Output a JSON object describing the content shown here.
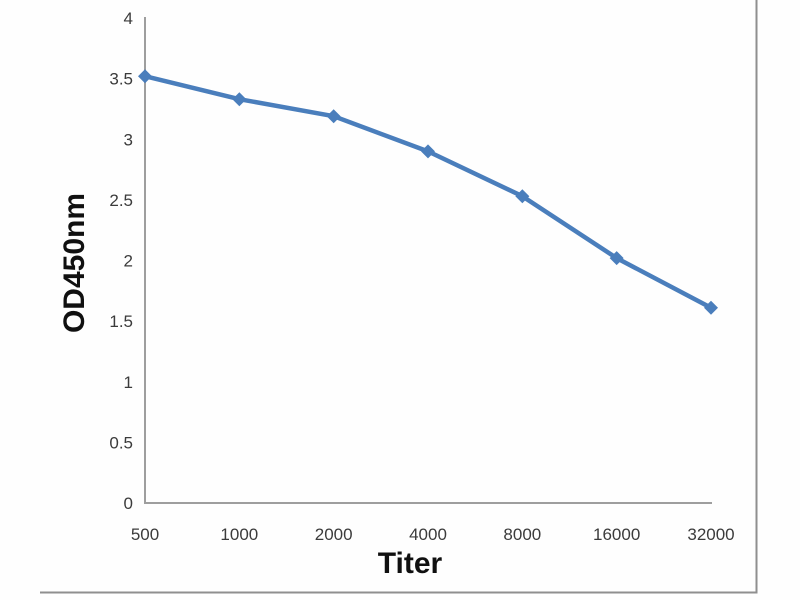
{
  "figure": {
    "description": "ELISA antibody titration curve",
    "background_color": "#fefefe"
  },
  "chart_data": {
    "type": "line",
    "title": "",
    "xlabel": "Titer",
    "ylabel": "OD450nm",
    "categories": [
      "500",
      "1000",
      "2000",
      "4000",
      "8000",
      "16000",
      "32000"
    ],
    "series": [
      {
        "name": "OD450nm",
        "values": [
          3.52,
          3.33,
          3.19,
          2.9,
          2.53,
          2.02,
          1.61
        ]
      }
    ],
    "ylim": [
      0,
      4
    ],
    "y_ticks": [
      0,
      0.5,
      1,
      1.5,
      2,
      2.5,
      3,
      3.5,
      4
    ],
    "grid": false,
    "legend": false,
    "marker": "diamond",
    "line_color": "#4a7ebc",
    "marker_color": "#4a7ebc",
    "axis_color": "#9e9e9e",
    "tick_label_color": "#3b3b3b",
    "axis_title_color": "#101010",
    "frame_color": "#8f8f8f"
  }
}
